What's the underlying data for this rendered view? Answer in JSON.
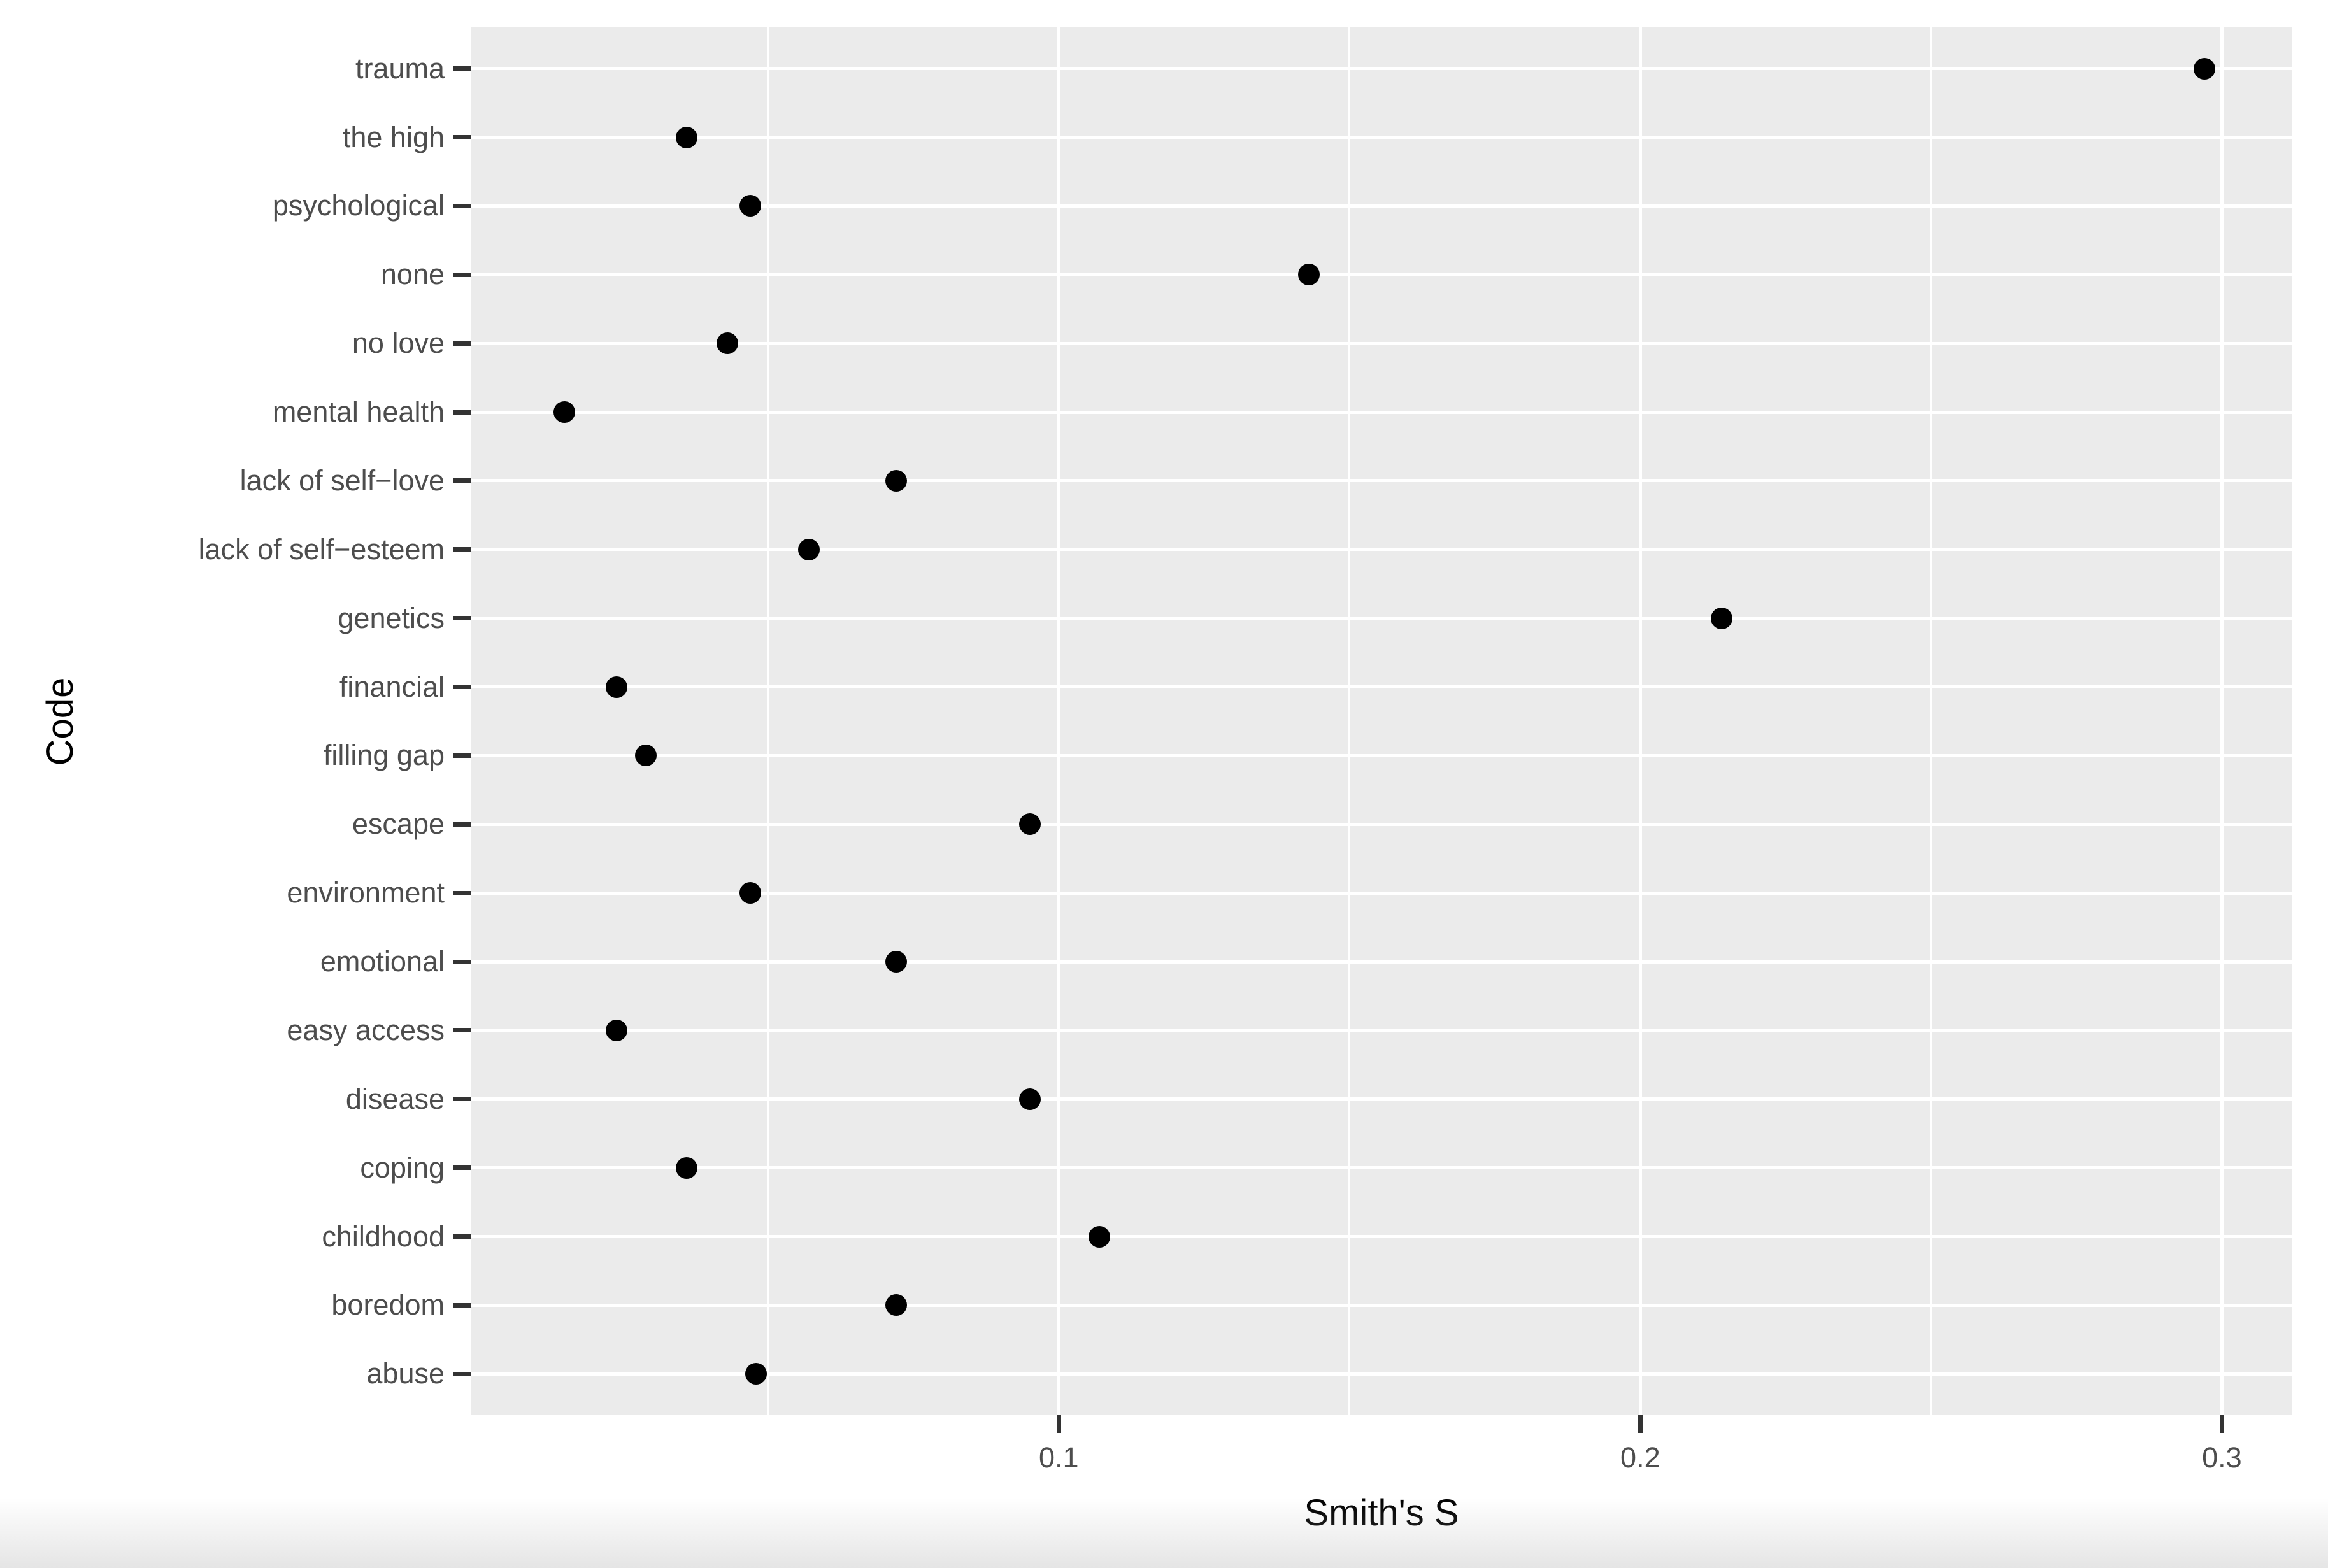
{
  "chart_data": {
    "type": "scatter",
    "subtype": "horizontal-dot-plot",
    "xlabel": "Smith's S",
    "ylabel": "Code",
    "categories": [
      "trauma",
      "the high",
      "psychological",
      "none",
      "no love",
      "mental health",
      "lack of self−love",
      "lack of self−esteem",
      "genetics",
      "financial",
      "filling gap",
      "escape",
      "environment",
      "emotional",
      "easy access",
      "disease",
      "coping",
      "childhood",
      "boredom",
      "abuse"
    ],
    "values": [
      0.297,
      0.036,
      0.047,
      0.143,
      0.043,
      0.015,
      0.072,
      0.057,
      0.214,
      0.024,
      0.029,
      0.095,
      0.047,
      0.072,
      0.024,
      0.095,
      0.036,
      0.107,
      0.072,
      0.048
    ],
    "xlim": [
      -0.001,
      0.312
    ],
    "x_major_ticks": [
      0.1,
      0.2,
      0.3
    ],
    "x_tick_labels": [
      "0.1",
      "0.2",
      "0.3"
    ],
    "x_minor_gridlines": [
      0.05,
      0.15,
      0.25
    ],
    "grid": "major-and-minor-vertical, major-horizontal-per-category",
    "legend": "none"
  },
  "style": {
    "panel_bg": "#ebebeb",
    "grid_color": "#ffffff",
    "point_color": "#000000",
    "axis_text_color": "#4d4d4d",
    "axis_title_color": "#000000",
    "tick_color": "#333333"
  }
}
